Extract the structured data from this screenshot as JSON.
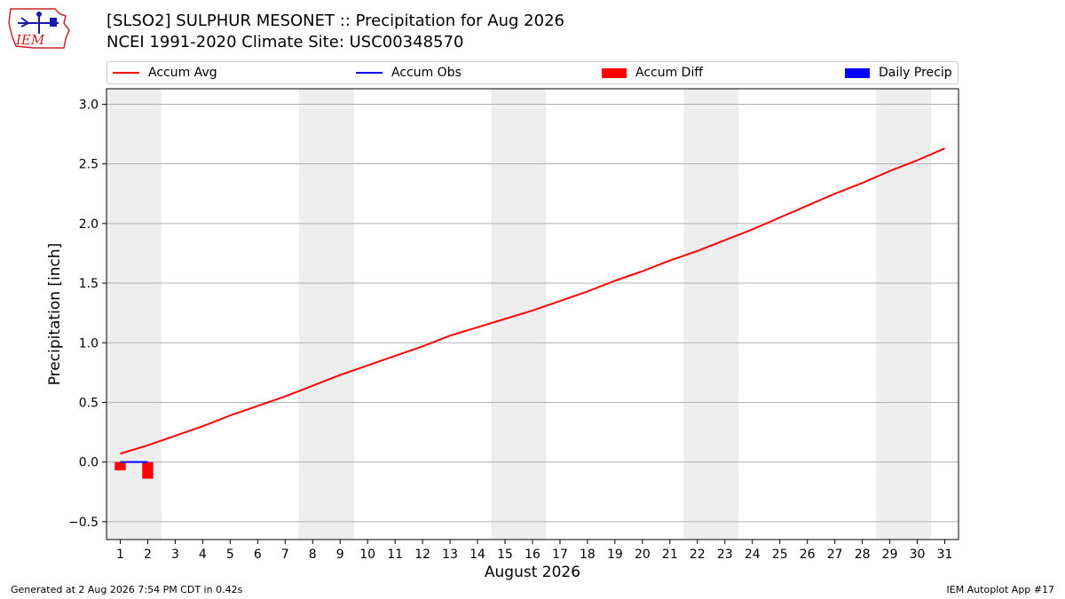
{
  "header": {
    "title_line1": "[SLSO2] SULPHUR MESONET :: Precipitation for Aug 2026",
    "title_line2": "NCEI 1991-2020 Climate Site: USC00348570"
  },
  "logo": {
    "text": "IEM"
  },
  "legend": {
    "items": [
      {
        "label": "Accum Avg",
        "kind": "line",
        "color": "#ff0000"
      },
      {
        "label": "Accum Obs",
        "kind": "line",
        "color": "#0000ff"
      },
      {
        "label": "Accum Diff",
        "kind": "box",
        "color": "#ff0000"
      },
      {
        "label": "Daily Precip",
        "kind": "box",
        "color": "#0000ff"
      }
    ]
  },
  "footer": {
    "left": "Generated at 2 Aug 2026 7:54 PM CDT in 0.42s",
    "right": "IEM Autoplot App #17"
  },
  "chart_data": {
    "type": "line",
    "title": "[SLSO2] SULPHUR MESONET :: Precipitation for Aug 2026",
    "subtitle": "NCEI 1991-2020 Climate Site: USC00348570",
    "xlabel": "August 2026",
    "ylabel": "Precipitation [inch]",
    "x": [
      1,
      2,
      3,
      4,
      5,
      6,
      7,
      8,
      9,
      10,
      11,
      12,
      13,
      14,
      15,
      16,
      17,
      18,
      19,
      20,
      21,
      22,
      23,
      24,
      25,
      26,
      27,
      28,
      29,
      30,
      31
    ],
    "xlim": [
      0.5,
      31.5
    ],
    "ylim": [
      -0.65,
      3.13
    ],
    "yticks": [
      -0.5,
      0.0,
      0.5,
      1.0,
      1.5,
      2.0,
      2.5,
      3.0
    ],
    "ytick_labels": [
      "−0.5",
      "0.0",
      "0.5",
      "1.0",
      "1.5",
      "2.0",
      "2.5",
      "3.0"
    ],
    "grid": "horizontal",
    "legend_position": "top",
    "weekend_shading": [
      [
        0.5,
        2.5
      ],
      [
        7.5,
        9.5
      ],
      [
        14.5,
        16.5
      ],
      [
        21.5,
        23.5
      ],
      [
        28.5,
        30.5
      ]
    ],
    "series": [
      {
        "name": "Accum Avg",
        "type": "line",
        "color": "#ff0000",
        "x": [
          1,
          2,
          3,
          4,
          5,
          6,
          7,
          8,
          9,
          10,
          11,
          12,
          13,
          14,
          15,
          16,
          17,
          18,
          19,
          20,
          21,
          22,
          23,
          24,
          25,
          26,
          27,
          28,
          29,
          30,
          31
        ],
        "values": [
          0.07,
          0.14,
          0.22,
          0.3,
          0.39,
          0.47,
          0.55,
          0.64,
          0.73,
          0.81,
          0.89,
          0.97,
          1.06,
          1.13,
          1.2,
          1.27,
          1.35,
          1.43,
          1.52,
          1.6,
          1.69,
          1.77,
          1.86,
          1.95,
          2.05,
          2.15,
          2.25,
          2.34,
          2.44,
          2.53,
          2.63
        ]
      },
      {
        "name": "Accum Obs",
        "type": "line",
        "color": "#0000ff",
        "x": [
          1,
          2
        ],
        "values": [
          0.0,
          0.0
        ]
      },
      {
        "name": "Accum Diff",
        "type": "bar",
        "color": "#ff0000",
        "x": [
          1,
          2
        ],
        "values": [
          -0.07,
          -0.14
        ]
      },
      {
        "name": "Daily Precip",
        "type": "bar",
        "color": "#0000ff",
        "x": [
          1,
          2
        ],
        "values": [
          0.0,
          0.0
        ]
      }
    ]
  }
}
